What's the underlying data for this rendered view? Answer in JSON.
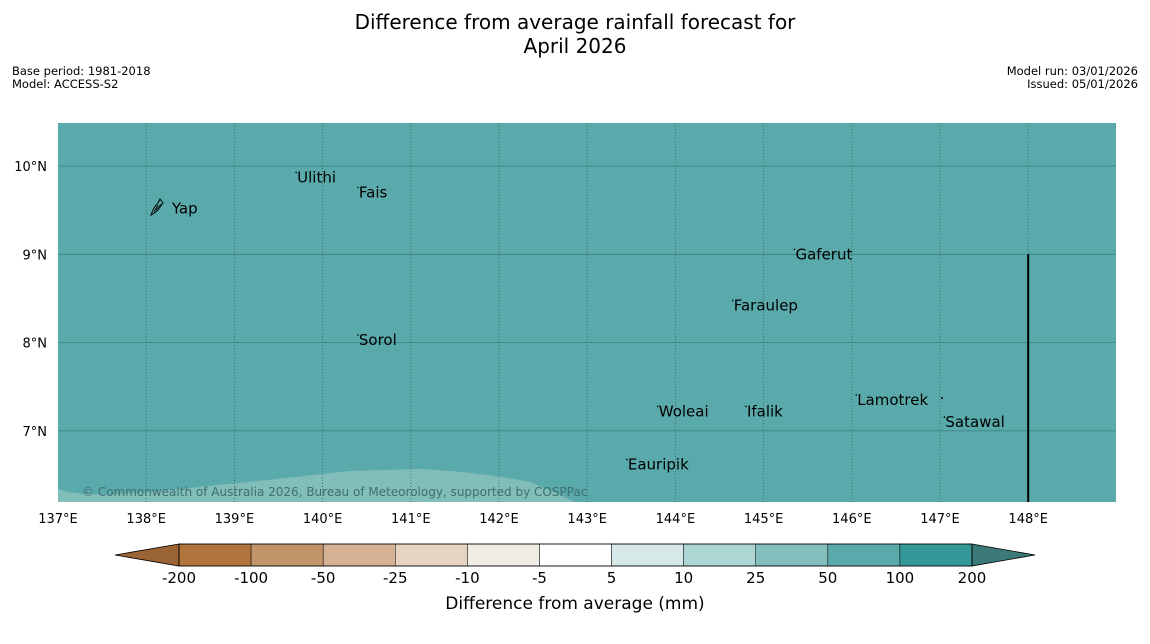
{
  "title_line1": "Difference from average rainfall forecast for",
  "title_line2": "April 2026",
  "base_period": "Base period: 1981-2018",
  "model": "Model: ACCESS-S2",
  "model_run": "Model run: 03/01/2026",
  "issued": "Issued: 05/01/2026",
  "copyright": "© Commonwealth of Australia 2026, Bureau of Meteorology, supported by COSPPac",
  "map": {
    "lon_range": [
      137,
      149
    ],
    "lat_range": [
      6.2,
      10.5
    ],
    "fill_color": "#5aaaab",
    "lower_fill_color": "#81bdb9",
    "lon_ticks": [
      {
        "value": 137,
        "label": "137°E"
      },
      {
        "value": 138,
        "label": "138°E"
      },
      {
        "value": 139,
        "label": "139°E"
      },
      {
        "value": 140,
        "label": "140°E"
      },
      {
        "value": 141,
        "label": "141°E"
      },
      {
        "value": 142,
        "label": "142°E"
      },
      {
        "value": 143,
        "label": "143°E"
      },
      {
        "value": 144,
        "label": "144°E"
      },
      {
        "value": 145,
        "label": "145°E"
      },
      {
        "value": 146,
        "label": "146°E"
      },
      {
        "value": 147,
        "label": "147°E"
      },
      {
        "value": 148,
        "label": "148°E"
      }
    ],
    "lat_ticks": [
      {
        "value": 7,
        "label": "7°N"
      },
      {
        "value": 8,
        "label": "8°N"
      },
      {
        "value": 9,
        "label": "9°N"
      },
      {
        "value": 10,
        "label": "10°N"
      }
    ],
    "places": [
      {
        "name": "Yap",
        "lon": 138.2,
        "lat": 9.52
      },
      {
        "name": "Ulithi",
        "lon": 139.7,
        "lat": 9.87
      },
      {
        "name": "Fais",
        "lon": 140.4,
        "lat": 9.7
      },
      {
        "name": "Gaferut",
        "lon": 145.35,
        "lat": 9.0
      },
      {
        "name": "Faraulep",
        "lon": 144.65,
        "lat": 8.42
      },
      {
        "name": "Sorol",
        "lon": 140.4,
        "lat": 8.03
      },
      {
        "name": "Lamotrek",
        "lon": 146.05,
        "lat": 7.35
      },
      {
        "name": "Woleai",
        "lon": 143.8,
        "lat": 7.22
      },
      {
        "name": "Ifalik",
        "lon": 144.8,
        "lat": 7.22
      },
      {
        "name": "Satawal",
        "lon": 147.05,
        "lat": 7.1
      },
      {
        "name": "Eauripik",
        "lon": 143.45,
        "lat": 6.62
      }
    ],
    "boundary_lon": 148,
    "boundary_lat_top": 9.0
  },
  "colorbar": {
    "label": "Difference from average (mm)",
    "ticks": [
      "-200",
      "-100",
      "-50",
      "-25",
      "-10",
      "-5",
      "5",
      "10",
      "25",
      "50",
      "100",
      "200"
    ],
    "low_extend_color": "#9a6434",
    "high_extend_color": "#3b7a78",
    "colors": [
      "#b0743c",
      "#c2946a",
      "#d5b293",
      "#e6d3c1",
      "#f0ece6",
      "#ffffff",
      "#d6e9e8",
      "#acd5d4",
      "#82bfbd",
      "#5aaaab",
      "#339897"
    ]
  }
}
